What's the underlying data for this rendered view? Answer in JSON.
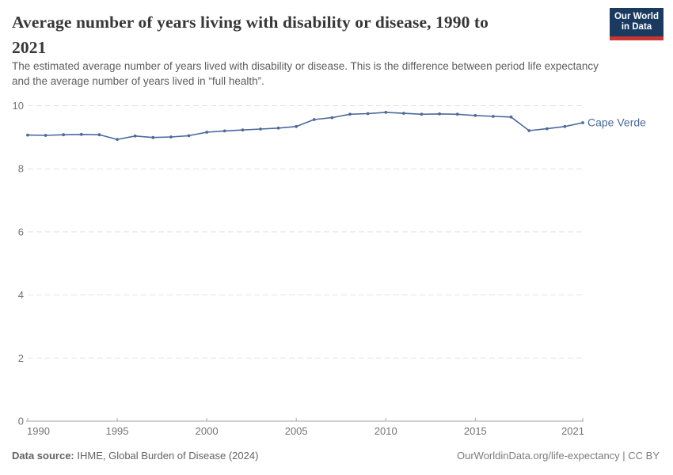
{
  "header": {
    "title_line1": "Average number of years living with disability or disease, 1990 to",
    "title_line2": "2021",
    "subtitle": "The estimated average number of years lived with disability or disease. This is the difference between period life expectancy and the average number of years lived in “full health”.",
    "logo_line1": "Our World",
    "logo_line2": "in Data"
  },
  "chart_data": {
    "type": "line",
    "title": "Average number of years living with disability or disease, 1990 to 2021",
    "xlabel": "",
    "ylabel": "",
    "xlim": [
      1990,
      2021
    ],
    "ylim": [
      0,
      10
    ],
    "xticks": [
      1990,
      1995,
      2000,
      2005,
      2010,
      2015,
      2021
    ],
    "yticks": [
      0,
      2,
      4,
      6,
      8,
      10
    ],
    "grid": "horizontal-dashed",
    "legend_position": "line-end",
    "x": [
      1990,
      1991,
      1992,
      1993,
      1994,
      1995,
      1996,
      1997,
      1998,
      1999,
      2000,
      2001,
      2002,
      2003,
      2004,
      2005,
      2006,
      2007,
      2008,
      2009,
      2010,
      2011,
      2012,
      2013,
      2014,
      2015,
      2016,
      2017,
      2018,
      2019,
      2020,
      2021
    ],
    "series": [
      {
        "name": "Cape Verde",
        "color": "#4C6A9C",
        "values": [
          9.07,
          9.06,
          9.08,
          9.09,
          9.08,
          8.93,
          9.04,
          8.99,
          9.01,
          9.05,
          9.16,
          9.2,
          9.23,
          9.26,
          9.29,
          9.34,
          9.56,
          9.62,
          9.73,
          9.75,
          9.79,
          9.76,
          9.73,
          9.74,
          9.73,
          9.69,
          9.66,
          9.64,
          9.21,
          9.27,
          9.34,
          9.46
        ]
      }
    ]
  },
  "footer": {
    "datasource_bold": "Data source:",
    "datasource_rest": " IHME, Global Burden of Disease (2024)",
    "credit": "OurWorldinData.org/life-expectancy | CC BY"
  },
  "colors": {
    "line": "#4C6A9C",
    "grid": "#e2e2e2",
    "axis": "#a6a6a6",
    "tick_label": "#737373",
    "logo_bg": "#1a3a5f",
    "logo_accent": "#cb3530"
  }
}
